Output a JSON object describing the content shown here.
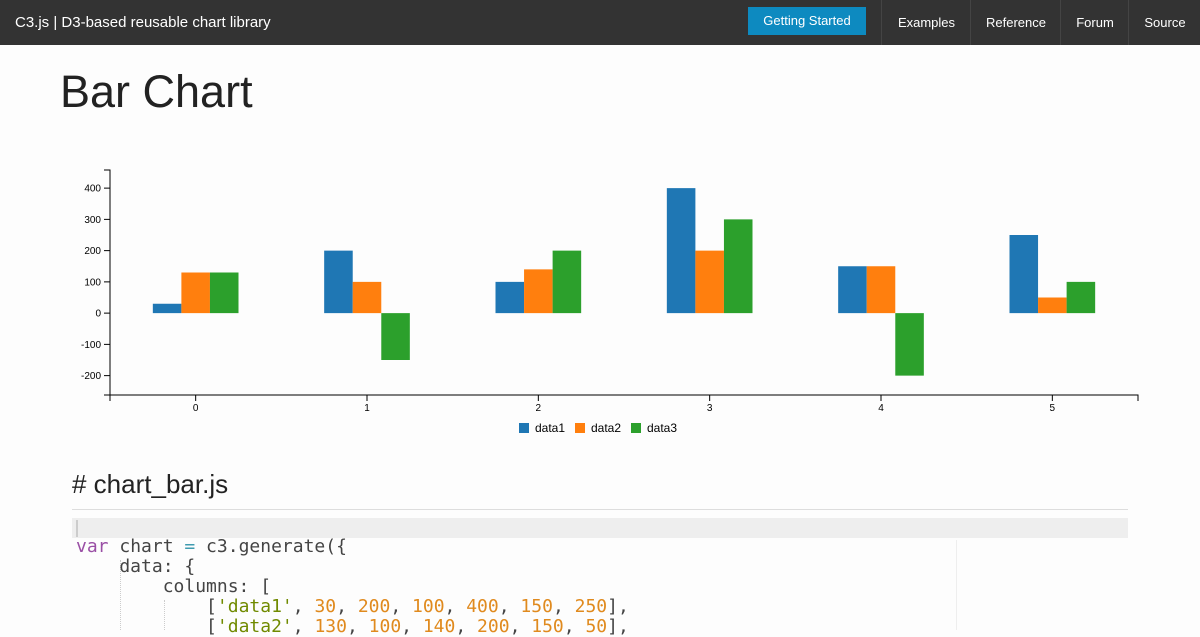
{
  "nav": {
    "brand": "C3.js | D3-based reusable chart library",
    "button": "Getting Started",
    "links": [
      "Examples",
      "Reference",
      "Forum",
      "Source"
    ]
  },
  "page_title": "Bar Chart",
  "chart_data": {
    "type": "bar",
    "categories": [
      "0",
      "1",
      "2",
      "3",
      "4",
      "5"
    ],
    "series": [
      {
        "name": "data1",
        "color": "#1f77b4",
        "values": [
          30,
          200,
          100,
          400,
          150,
          250
        ]
      },
      {
        "name": "data2",
        "color": "#ff7f0e",
        "values": [
          130,
          100,
          140,
          200,
          150,
          50
        ]
      },
      {
        "name": "data3",
        "color": "#2ca02c",
        "values": [
          130,
          -150,
          200,
          300,
          -200,
          100
        ]
      }
    ],
    "ylim": [
      -262,
      458
    ],
    "yticks": [
      -200,
      -100,
      0,
      100,
      200,
      300,
      400
    ],
    "legend": "bottom"
  },
  "section": {
    "heading": "# chart_bar.js",
    "code": [
      "var chart = c3.generate({",
      "    data: {",
      "        columns: [",
      "            ['data1', 30, 200, 100, 400, 150, 250],",
      "            ['data2', 130, 100, 140, 200, 150, 50],"
    ]
  }
}
